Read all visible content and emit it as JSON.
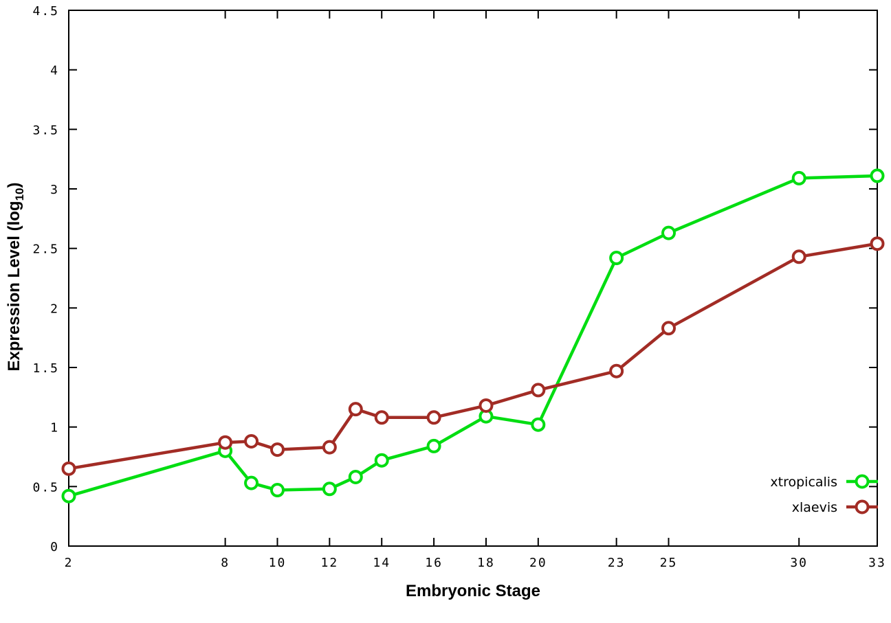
{
  "figure": {
    "background": "#ffffff",
    "border_color": "#000000"
  },
  "chart_data": {
    "type": "line",
    "title": "",
    "xlabel": "Embryonic Stage",
    "ylabel": "Expression Level (log10)",
    "ylabel_parts": {
      "prefix": "Expression Level (log",
      "sub": "10",
      "suffix": ")"
    },
    "xlim": [
      2,
      33
    ],
    "ylim": [
      0,
      4.5
    ],
    "grid": false,
    "legend_position": "bottom-right",
    "x_ticks": [
      2,
      8,
      10,
      12,
      14,
      16,
      18,
      20,
      23,
      25,
      30,
      33
    ],
    "x_tick_labels": [
      "2",
      "8",
      "10",
      "12",
      "14",
      "16",
      "18",
      "20",
      "23",
      "25",
      "30",
      "33"
    ],
    "y_ticks": [
      0,
      0.5,
      1,
      1.5,
      2,
      2.5,
      3,
      3.5,
      4,
      4.5
    ],
    "y_tick_labels": [
      "0",
      "0.5",
      "1",
      "1.5",
      "2",
      "2.5",
      "3",
      "3.5",
      "4",
      "4.5"
    ],
    "x": [
      2,
      8,
      9,
      10,
      12,
      13,
      14,
      16,
      18,
      20,
      23,
      25,
      30,
      33
    ],
    "series": [
      {
        "name": "xtropicalis",
        "color": "#00dd11",
        "marker": "open-circle",
        "values": [
          0.42,
          0.8,
          0.53,
          0.47,
          0.48,
          0.58,
          0.72,
          0.84,
          1.09,
          1.02,
          2.42,
          2.63,
          3.09,
          3.11
        ]
      },
      {
        "name": "xlaevis",
        "color": "#a22c25",
        "marker": "open-circle",
        "values": [
          0.65,
          0.87,
          0.88,
          0.81,
          0.83,
          1.15,
          1.08,
          1.08,
          1.18,
          1.31,
          1.47,
          1.83,
          2.43,
          2.54
        ]
      }
    ]
  }
}
